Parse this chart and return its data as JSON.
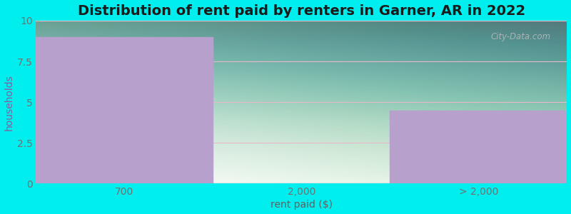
{
  "title": "Distribution of rent paid by renters in Garner, AR in 2022",
  "xlabel": "rent paid ($)",
  "ylabel": "households",
  "categories": [
    "700",
    "2,000",
    "> 2,000"
  ],
  "values": [
    9,
    0,
    4.5
  ],
  "bar_color": "#b8a0cc",
  "ylim": [
    0,
    10
  ],
  "yticks": [
    0,
    2.5,
    5,
    7.5,
    10
  ],
  "background_color": "#00eeee",
  "title_fontsize": 14,
  "axis_label_fontsize": 10,
  "tick_fontsize": 10,
  "watermark_text": "City-Data.com",
  "grid_color": "#e8b8c8",
  "ylabel_color": "#8060a0",
  "xlabel_color": "#606060",
  "tick_color": "#707070",
  "title_color": "#1a1a1a"
}
